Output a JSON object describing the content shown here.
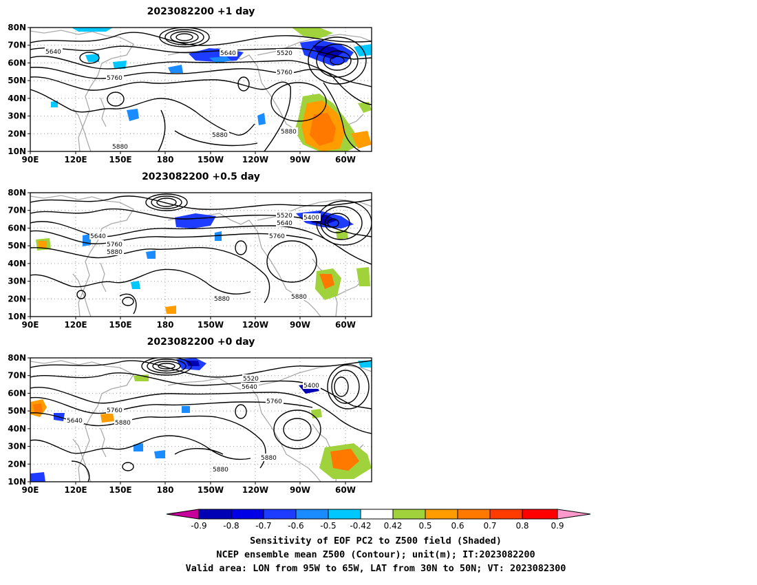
{
  "panels": [
    {
      "title": "2023082200  +1 day",
      "contour_labels": [
        "5640",
        "5640",
        "5520",
        "5760",
        "5760",
        "5880",
        "5880",
        "5880"
      ]
    },
    {
      "title": "2023082200  +0.5 day",
      "contour_labels": [
        "5520",
        "5640",
        "5400",
        "5640",
        "5760",
        "5880",
        "5760",
        "5880",
        "5880"
      ]
    },
    {
      "title": "2023082200  +0 day",
      "contour_labels": [
        "5520",
        "5640",
        "5400",
        "5760",
        "5760",
        "5880",
        "5640",
        "5880",
        "5880"
      ]
    }
  ],
  "lat_ticks": [
    "80N",
    "70N",
    "60N",
    "50N",
    "40N",
    "30N",
    "20N",
    "10N"
  ],
  "lon_ticks": [
    "90E",
    "120E",
    "150E",
    "180",
    "150W",
    "120W",
    "90W",
    "60W"
  ],
  "colorbar": {
    "tick_labels": [
      "-0.9",
      "-0.8",
      "-0.7",
      "-0.6",
      "-0.5",
      "-0.42",
      "0.42",
      "0.5",
      "0.6",
      "0.7",
      "0.8",
      "0.9"
    ],
    "colors": [
      "#c8009b",
      "#0000b4",
      "#0000e6",
      "#1e3cff",
      "#1a8cff",
      "#00c8ff",
      "#ffffff",
      "#a0d23c",
      "#ff9c00",
      "#ff7800",
      "#ff3c00",
      "#ff0000",
      "#ff99cc"
    ]
  },
  "caption": {
    "line1": "Sensitivity of EOF PC2 to Z500 field (Shaded)",
    "line2": "NCEP ensemble mean Z500 (Contour); unit(m); IT:2023082200",
    "line3": "Valid area: LON from 95W to 65W, LAT from 30N to 50N; VT: 2023082300"
  }
}
